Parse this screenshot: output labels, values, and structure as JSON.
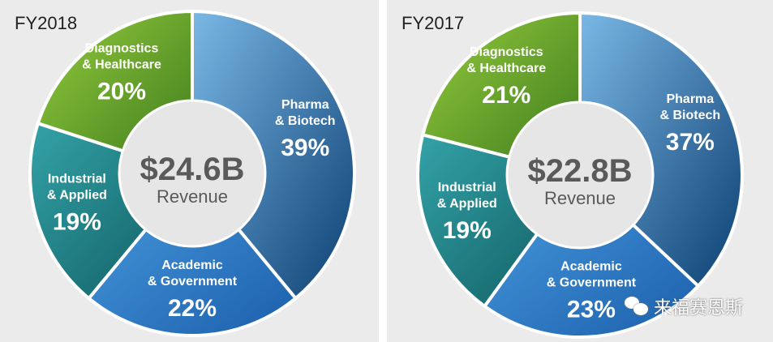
{
  "chart_data": [
    {
      "type": "pie",
      "title": "FY2018",
      "center_value": "$24.6B",
      "center_label": "Revenue",
      "categories": [
        "Pharma & Biotech",
        "Academic & Government",
        "Industrial & Applied",
        "Diagnostics & Healthcare"
      ],
      "label_lines": [
        [
          "Pharma",
          "& Biotech"
        ],
        [
          "Academic",
          "& Government"
        ],
        [
          "Industrial",
          "& Applied"
        ],
        [
          "Diagnostics",
          "& Healthcare"
        ]
      ],
      "values": [
        39,
        22,
        19,
        20
      ],
      "value_labels": [
        "39%",
        "22%",
        "19%",
        "20%"
      ]
    },
    {
      "type": "pie",
      "title": "FY2017",
      "center_value": "$22.8B",
      "center_label": "Revenue",
      "categories": [
        "Pharma & Biotech",
        "Academic & Government",
        "Industrial & Applied",
        "Diagnostics & Healthcare"
      ],
      "label_lines": [
        [
          "Pharma",
          "& Biotech"
        ],
        [
          "Academic",
          "& Government"
        ],
        [
          "Industrial",
          "& Applied"
        ],
        [
          "Diagnostics",
          "& Healthcare"
        ]
      ],
      "values": [
        37,
        23,
        19,
        21
      ],
      "value_labels": [
        "37%",
        "23%",
        "19%",
        "21%"
      ]
    }
  ],
  "colors": [
    [
      "#7ab8e6",
      "#0c3f72"
    ],
    [
      "#4a9de0",
      "#1b5eab"
    ],
    [
      "#33a3a8",
      "#0f5a5f"
    ],
    [
      "#95cc3c",
      "#3c7a1d"
    ]
  ],
  "watermark": "来福赛恩斯"
}
